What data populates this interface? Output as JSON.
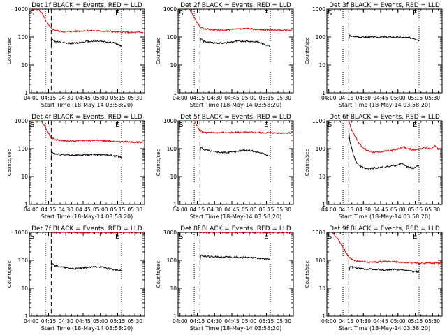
{
  "colors": {
    "background": "#ffffff",
    "axis": "#000000",
    "events": "#000000",
    "lld": "#e00000"
  },
  "common": {
    "xlabel": "Start Time (18-May-14 03:58:20)",
    "ylabel": "Counts/sec",
    "x_ticks": [
      "04:00",
      "04:15",
      "04:30",
      "04:45",
      "05:00",
      "05:15",
      "05:30"
    ],
    "y_ticks": [
      "1",
      "10",
      "100",
      "1000"
    ],
    "start_marker": "S",
    "end_marker": "E"
  },
  "chart_data": [
    {
      "type": "line",
      "title": "Det 1f BLACK = Events, RED = LLD",
      "xlim_minutes": [
        0,
        100
      ],
      "ylim": [
        1,
        1000
      ],
      "y_scale": "log",
      "start_dotted_minutes": 14,
      "start_dashed_minutes": 19,
      "end_dotted_minutes": 80,
      "series": [
        {
          "name": "LLD (red)",
          "color": "#e00000",
          "points": [
            [
              0,
              1000
            ],
            [
              8,
              1000
            ],
            [
              11,
              700
            ],
            [
              14,
              400
            ],
            [
              17,
              250
            ],
            [
              20,
              190
            ],
            [
              25,
              165
            ],
            [
              30,
              155
            ],
            [
              40,
              160
            ],
            [
              50,
              170
            ],
            [
              60,
              165
            ],
            [
              70,
              160
            ],
            [
              80,
              150
            ],
            [
              90,
              145
            ],
            [
              99,
              145
            ]
          ]
        },
        {
          "name": "Events (black)",
          "color": "#000000",
          "points": [
            [
              19,
              50
            ],
            [
              19.5,
              90
            ],
            [
              22,
              70
            ],
            [
              30,
              60
            ],
            [
              40,
              60
            ],
            [
              50,
              70
            ],
            [
              60,
              72
            ],
            [
              70,
              65
            ],
            [
              75,
              60
            ],
            [
              80,
              45
            ]
          ]
        }
      ]
    },
    {
      "type": "line",
      "title": "Det 2f BLACK = Events, RED = LLD",
      "xlim_minutes": [
        0,
        100
      ],
      "ylim": [
        1,
        1000
      ],
      "y_scale": "log",
      "start_dotted_minutes": 14,
      "start_dashed_minutes": 19,
      "end_dotted_minutes": 80,
      "series": [
        {
          "name": "LLD (red)",
          "color": "#e00000",
          "points": [
            [
              0,
              1000
            ],
            [
              10,
              1000
            ],
            [
              13,
              600
            ],
            [
              16,
              350
            ],
            [
              19,
              230
            ],
            [
              22,
              200
            ],
            [
              30,
              180
            ],
            [
              40,
              175
            ],
            [
              50,
              190
            ],
            [
              60,
              200
            ],
            [
              70,
              185
            ],
            [
              80,
              180
            ],
            [
              90,
              175
            ],
            [
              99,
              180
            ]
          ]
        },
        {
          "name": "Events (black)",
          "color": "#000000",
          "points": [
            [
              19,
              55
            ],
            [
              19.5,
              85
            ],
            [
              22,
              70
            ],
            [
              30,
              62
            ],
            [
              40,
              60
            ],
            [
              50,
              70
            ],
            [
              60,
              72
            ],
            [
              70,
              65
            ],
            [
              75,
              55
            ],
            [
              80,
              48
            ]
          ]
        }
      ]
    },
    {
      "type": "line",
      "title": "Det 3f BLACK = Events, RED = LLD",
      "xlim_minutes": [
        0,
        100
      ],
      "ylim": [
        1,
        1000
      ],
      "y_scale": "log",
      "start_dotted_minutes": 14,
      "start_dashed_minutes": 19,
      "end_dotted_minutes": 80,
      "series": [
        {
          "name": "Events (black)",
          "color": "#000000",
          "points": [
            [
              19,
              70
            ],
            [
              19.5,
              115
            ],
            [
              22,
              105
            ],
            [
              30,
              100
            ],
            [
              40,
              98
            ],
            [
              50,
              100
            ],
            [
              60,
              98
            ],
            [
              70,
              95
            ],
            [
              76,
              90
            ],
            [
              80,
              75
            ]
          ]
        }
      ]
    },
    {
      "type": "line",
      "title": "Det 4f BLACK = Events, RED = LLD",
      "xlim_minutes": [
        0,
        100
      ],
      "ylim": [
        1,
        1000
      ],
      "y_scale": "log",
      "start_dotted_minutes": 14,
      "start_dashed_minutes": 19,
      "end_dotted_minutes": 80,
      "series": [
        {
          "name": "LLD (red)",
          "color": "#e00000",
          "points": [
            [
              0,
              1000
            ],
            [
              10,
              1000
            ],
            [
              13,
              700
            ],
            [
              16,
              400
            ],
            [
              19,
              250
            ],
            [
              22,
              210
            ],
            [
              30,
              195
            ],
            [
              40,
              190
            ],
            [
              50,
              195
            ],
            [
              60,
              200
            ],
            [
              70,
              185
            ],
            [
              80,
              175
            ],
            [
              90,
              170
            ],
            [
              99,
              170
            ]
          ]
        },
        {
          "name": "Events (black)",
          "color": "#000000",
          "points": [
            [
              19,
              40
            ],
            [
              19.5,
              80
            ],
            [
              22,
              65
            ],
            [
              30,
              60
            ],
            [
              40,
              58
            ],
            [
              50,
              60
            ],
            [
              60,
              62
            ],
            [
              70,
              58
            ],
            [
              75,
              55
            ],
            [
              80,
              50
            ]
          ]
        }
      ]
    },
    {
      "type": "line",
      "title": "Det 5f BLACK = Events, RED = LLD",
      "xlim_minutes": [
        0,
        100
      ],
      "ylim": [
        1,
        1000
      ],
      "y_scale": "log",
      "start_dotted_minutes": 14,
      "start_dashed_minutes": 19,
      "end_dotted_minutes": 80,
      "series": [
        {
          "name": "LLD (red)",
          "color": "#e00000",
          "points": [
            [
              0,
              1000
            ],
            [
              14,
              1000
            ],
            [
              16,
              700
            ],
            [
              19,
              450
            ],
            [
              23,
              380
            ],
            [
              30,
              370
            ],
            [
              40,
              375
            ],
            [
              50,
              380
            ],
            [
              60,
              380
            ],
            [
              70,
              375
            ],
            [
              80,
              370
            ],
            [
              90,
              365
            ],
            [
              99,
              370
            ]
          ]
        },
        {
          "name": "Events (black)",
          "color": "#000000",
          "points": [
            [
              19,
              70
            ],
            [
              19.5,
              110
            ],
            [
              22,
              95
            ],
            [
              30,
              80
            ],
            [
              40,
              72
            ],
            [
              50,
              80
            ],
            [
              55,
              85
            ],
            [
              60,
              88
            ],
            [
              70,
              75
            ],
            [
              75,
              65
            ],
            [
              80,
              55
            ]
          ]
        }
      ]
    },
    {
      "type": "line",
      "title": "Det 6f BLACK = Events, RED = LLD",
      "xlim_minutes": [
        0,
        100
      ],
      "ylim": [
        1,
        1000
      ],
      "y_scale": "log",
      "start_dotted_minutes": 14,
      "start_dashed_minutes": 19,
      "end_dotted_minutes": 80,
      "series": [
        {
          "name": "LLD (red)",
          "color": "#e00000",
          "points": [
            [
              19,
              1000
            ],
            [
              21,
              550
            ],
            [
              24,
              300
            ],
            [
              27,
              180
            ],
            [
              30,
              120
            ],
            [
              35,
              85
            ],
            [
              40,
              75
            ],
            [
              50,
              80
            ],
            [
              60,
              90
            ],
            [
              66,
              115
            ],
            [
              70,
              100
            ],
            [
              75,
              90
            ],
            [
              80,
              95
            ],
            [
              85,
              110
            ],
            [
              90,
              95
            ],
            [
              94,
              130
            ],
            [
              97,
              90
            ],
            [
              99,
              100
            ]
          ]
        },
        {
          "name": "Events (black)",
          "color": "#000000",
          "points": [
            [
              19,
              400
            ],
            [
              20,
              180
            ],
            [
              23,
              60
            ],
            [
              26,
              30
            ],
            [
              30,
              22
            ],
            [
              35,
              19
            ],
            [
              40,
              20
            ],
            [
              50,
              22
            ],
            [
              60,
              25
            ],
            [
              65,
              30
            ],
            [
              70,
              22
            ],
            [
              75,
              20
            ],
            [
              80,
              25
            ]
          ]
        }
      ]
    },
    {
      "type": "line",
      "title": "Det 7f BLACK = Events, RED = LLD",
      "xlim_minutes": [
        0,
        100
      ],
      "ylim": [
        1,
        1000
      ],
      "y_scale": "log",
      "start_dotted_minutes": 14,
      "start_dashed_minutes": 19,
      "end_dotted_minutes": 80,
      "series": [
        {
          "name": "LLD (red)",
          "color": "#e00000",
          "points": [
            [
              19,
              950
            ],
            [
              25,
              1000
            ],
            [
              40,
              1000
            ],
            [
              60,
              980
            ],
            [
              80,
              1000
            ],
            [
              90,
              990
            ],
            [
              99,
              1000
            ]
          ]
        },
        {
          "name": "Events (black)",
          "color": "#000000",
          "points": [
            [
              19,
              50
            ],
            [
              19.5,
              85
            ],
            [
              22,
              65
            ],
            [
              30,
              55
            ],
            [
              40,
              50
            ],
            [
              50,
              55
            ],
            [
              60,
              60
            ],
            [
              70,
              50
            ],
            [
              75,
              45
            ],
            [
              80,
              42
            ]
          ]
        }
      ]
    },
    {
      "type": "line",
      "title": "Det 8f BLACK = Events, RED = LLD",
      "xlim_minutes": [
        0,
        100
      ],
      "ylim": [
        1,
        1000
      ],
      "y_scale": "log",
      "start_dotted_minutes": 14,
      "start_dashed_minutes": 19,
      "end_dotted_minutes": 80,
      "series": [
        {
          "name": "LLD (red)",
          "color": "#e00000",
          "points": [
            [
              19,
              1000
            ],
            [
              40,
              1000
            ],
            [
              60,
              1000
            ],
            [
              80,
              1000
            ],
            [
              99,
              1000
            ]
          ]
        },
        {
          "name": "Events (black)",
          "color": "#000000",
          "points": [
            [
              19,
              90
            ],
            [
              19.5,
              150
            ],
            [
              22,
              140
            ],
            [
              30,
              135
            ],
            [
              40,
              130
            ],
            [
              50,
              130
            ],
            [
              60,
              125
            ],
            [
              70,
              120
            ],
            [
              75,
              115
            ],
            [
              80,
              110
            ]
          ]
        }
      ]
    },
    {
      "type": "line",
      "title": "Det 9f BLACK = Events, RED = LLD",
      "xlim_minutes": [
        0,
        100
      ],
      "ylim": [
        1,
        1000
      ],
      "y_scale": "log",
      "start_dotted_minutes": 14,
      "start_dashed_minutes": 19,
      "end_dotted_minutes": 80,
      "series": [
        {
          "name": "LLD (red)",
          "color": "#e00000",
          "points": [
            [
              5,
              1000
            ],
            [
              8,
              700
            ],
            [
              12,
              400
            ],
            [
              15,
              250
            ],
            [
              18,
              150
            ],
            [
              21,
              110
            ],
            [
              25,
              95
            ],
            [
              30,
              90
            ],
            [
              40,
              85
            ],
            [
              50,
              90
            ],
            [
              55,
              92
            ],
            [
              60,
              88
            ],
            [
              70,
              82
            ],
            [
              80,
              80
            ],
            [
              90,
              80
            ],
            [
              99,
              80
            ]
          ]
        },
        {
          "name": "Events (black)",
          "color": "#000000",
          "points": [
            [
              19,
              40
            ],
            [
              20,
              60
            ],
            [
              23,
              55
            ],
            [
              30,
              50
            ],
            [
              40,
              48
            ],
            [
              50,
              45
            ],
            [
              60,
              48
            ],
            [
              70,
              42
            ],
            [
              75,
              40
            ],
            [
              80,
              38
            ]
          ]
        }
      ]
    }
  ]
}
